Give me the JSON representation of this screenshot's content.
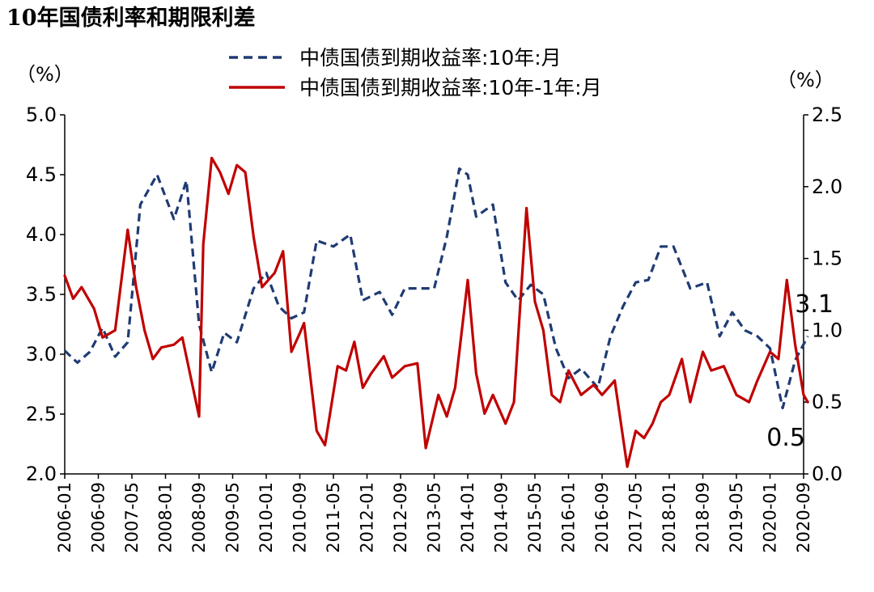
{
  "chart_data": {
    "type": "line",
    "title": "10年国债利率和期限利差",
    "y_left_unit": "（%）",
    "y_right_unit": "（%）",
    "y_left_range": [
      2.0,
      5.0
    ],
    "y_right_range": [
      0.0,
      2.5
    ],
    "y_left_ticks": [
      "2.0",
      "2.5",
      "3.0",
      "3.5",
      "4.0",
      "4.5",
      "5.0"
    ],
    "y_right_ticks": [
      "0.0",
      "0.5",
      "1.0",
      "1.5",
      "2.0",
      "2.5"
    ],
    "x_ticks": [
      "2006-01",
      "2006-09",
      "2007-05",
      "2008-01",
      "2008-09",
      "2009-05",
      "2010-01",
      "2010-09",
      "2011-05",
      "2012-01",
      "2012-09",
      "2013-05",
      "2014-01",
      "2014-09",
      "2015-05",
      "2016-01",
      "2016-09",
      "2017-05",
      "2018-01",
      "2018-09",
      "2019-05",
      "2020-01",
      "2020-09"
    ],
    "legend_position": "top",
    "grid": false,
    "series": [
      {
        "name": "中债国债到期收益率:10年:月",
        "axis": "left",
        "style": "dashed",
        "color": "#1f3b73",
        "x": [
          "2006-01",
          "2006-04",
          "2006-07",
          "2006-10",
          "2007-01",
          "2007-04",
          "2007-07",
          "2007-11",
          "2008-03",
          "2008-06",
          "2008-09",
          "2008-12",
          "2009-03",
          "2009-06",
          "2009-10",
          "2010-01",
          "2010-04",
          "2010-07",
          "2010-10",
          "2011-01",
          "2011-05",
          "2011-09",
          "2011-12",
          "2012-04",
          "2012-07",
          "2012-10",
          "2013-02",
          "2013-05",
          "2013-08",
          "2013-11",
          "2014-01",
          "2014-03",
          "2014-07",
          "2014-10",
          "2015-01",
          "2015-04",
          "2015-07",
          "2015-10",
          "2016-01",
          "2016-04",
          "2016-08",
          "2016-11",
          "2017-02",
          "2017-05",
          "2017-08",
          "2017-11",
          "2018-02",
          "2018-06",
          "2018-10",
          "2019-01",
          "2019-04",
          "2019-07",
          "2019-10",
          "2020-01",
          "2020-04",
          "2020-07",
          "2020-10"
        ],
        "values": [
          3.03,
          2.93,
          3.02,
          3.22,
          2.98,
          3.1,
          4.25,
          4.5,
          4.13,
          4.45,
          3.25,
          2.85,
          3.18,
          3.1,
          3.55,
          3.68,
          3.4,
          3.3,
          3.35,
          3.95,
          3.9,
          4.0,
          3.45,
          3.52,
          3.33,
          3.55,
          3.55,
          3.55,
          3.98,
          4.55,
          4.5,
          4.15,
          4.25,
          3.6,
          3.45,
          3.58,
          3.5,
          3.05,
          2.8,
          2.88,
          2.72,
          3.15,
          3.4,
          3.6,
          3.62,
          3.9,
          3.9,
          3.55,
          3.6,
          3.15,
          3.35,
          3.2,
          3.15,
          3.05,
          2.55,
          2.95,
          3.15
        ]
      },
      {
        "name": "中债国债到期收益率:10年-1年:月",
        "axis": "right",
        "style": "solid",
        "color": "#c00000",
        "x": [
          "2006-01",
          "2006-03",
          "2006-05",
          "2006-08",
          "2006-10",
          "2007-01",
          "2007-04",
          "2007-06",
          "2007-08",
          "2007-10",
          "2007-12",
          "2008-03",
          "2008-05",
          "2008-09",
          "2008-10",
          "2008-12",
          "2009-02",
          "2009-04",
          "2009-06",
          "2009-08",
          "2009-10",
          "2009-12",
          "2010-03",
          "2010-05",
          "2010-07",
          "2010-09",
          "2010-10",
          "2011-01",
          "2011-03",
          "2011-06",
          "2011-08",
          "2011-10",
          "2011-12",
          "2012-02",
          "2012-05",
          "2012-07",
          "2012-10",
          "2013-01",
          "2013-03",
          "2013-06",
          "2013-08",
          "2013-10",
          "2014-01",
          "2014-03",
          "2014-05",
          "2014-07",
          "2014-10",
          "2014-12",
          "2015-03",
          "2015-05",
          "2015-07",
          "2015-09",
          "2015-11",
          "2016-01",
          "2016-04",
          "2016-07",
          "2016-09",
          "2016-12",
          "2017-03",
          "2017-05",
          "2017-07",
          "2017-09",
          "2017-11",
          "2018-01",
          "2018-04",
          "2018-06",
          "2018-09",
          "2018-11",
          "2019-02",
          "2019-05",
          "2019-08",
          "2019-10",
          "2020-01",
          "2020-03",
          "2020-05",
          "2020-07",
          "2020-09",
          "2020-10"
        ],
        "values": [
          1.38,
          1.22,
          1.3,
          1.15,
          0.95,
          1.0,
          1.7,
          1.3,
          1.0,
          0.8,
          0.88,
          0.9,
          0.95,
          0.4,
          1.6,
          2.2,
          2.1,
          1.95,
          2.15,
          2.1,
          1.65,
          1.3,
          1.4,
          1.55,
          0.85,
          0.98,
          1.05,
          0.3,
          0.2,
          0.75,
          0.72,
          0.92,
          0.6,
          0.7,
          0.82,
          0.67,
          0.75,
          0.77,
          0.18,
          0.55,
          0.4,
          0.6,
          1.35,
          0.7,
          0.42,
          0.55,
          0.35,
          0.5,
          1.85,
          1.2,
          1.0,
          0.55,
          0.5,
          0.72,
          0.55,
          0.62,
          0.55,
          0.65,
          0.05,
          0.3,
          0.25,
          0.35,
          0.5,
          0.55,
          0.8,
          0.5,
          0.85,
          0.72,
          0.75,
          0.55,
          0.5,
          0.65,
          0.85,
          0.8,
          1.35,
          0.9,
          0.55,
          0.5
        ]
      }
    ],
    "annotations": [
      {
        "text": "3.1",
        "series": 0
      },
      {
        "text": "0.5",
        "series": 1
      }
    ]
  }
}
